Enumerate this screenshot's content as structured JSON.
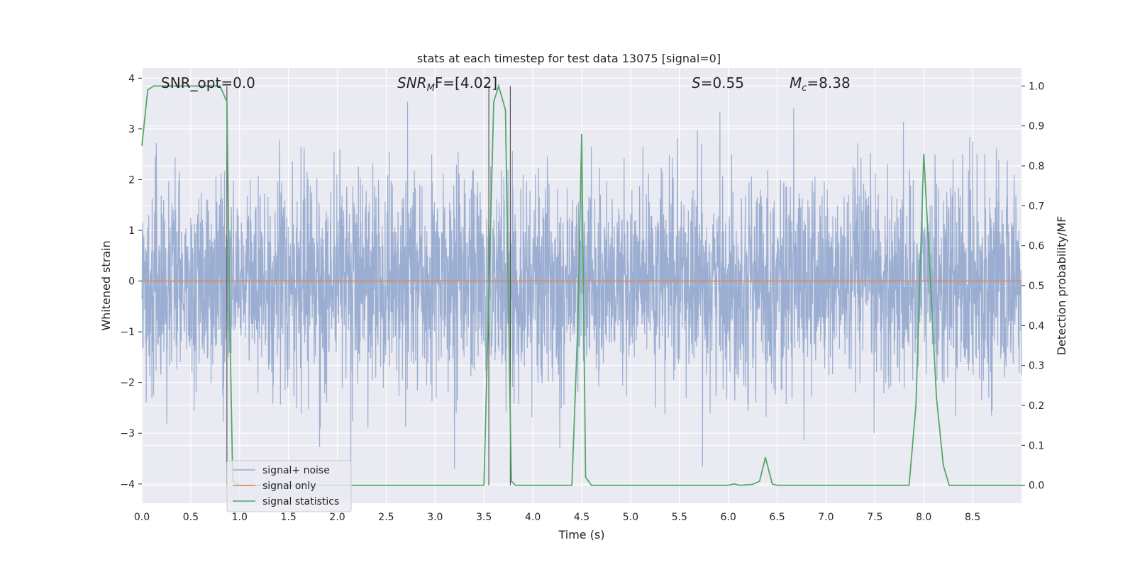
{
  "chart_data": {
    "type": "line",
    "title": "stats at each timestep for test data 13075 [signal=0]",
    "xlabel": "Time (s)",
    "ylabel_left": "Whitened strain",
    "ylabel_right": "Detection probability/MF",
    "xlim": [
      0.0,
      9.0
    ],
    "ylim_left": [
      -4.38,
      4.2
    ],
    "ylim_right": [
      -0.045,
      1.045
    ],
    "xticks": [
      "0.0",
      "0.5",
      "1.0",
      "1.5",
      "2.0",
      "2.5",
      "3.0",
      "3.5",
      "4.0",
      "4.5",
      "5.0",
      "5.5",
      "6.0",
      "6.5",
      "7.0",
      "7.5",
      "8.0",
      "8.5"
    ],
    "yticks_left": [
      "−4",
      "−3",
      "−2",
      "−1",
      "0",
      "1",
      "2",
      "3",
      "4"
    ],
    "yticks_right": [
      "0.0",
      "0.1",
      "0.2",
      "0.3",
      "0.4",
      "0.5",
      "0.6",
      "0.7",
      "0.8",
      "0.9",
      "1.0"
    ],
    "grid": true,
    "legend_placement": "lower-left",
    "annotations": {
      "snr_opt": "SNR_opt=0.0",
      "snr_mf_label": "SNR",
      "snr_mf_sub": "M",
      "snr_mf_value": "F=[4.02]",
      "s_label": "S",
      "s_value": "=0.55",
      "mc_label": "M",
      "mc_sub": "c",
      "mc_value": "=8.38"
    },
    "series": [
      {
        "name": "signal+ noise",
        "axis": "left",
        "color": "#4c72b0",
        "description_range": [
          -4.0,
          4.0
        ],
        "duration_s": 9.0
      },
      {
        "name": "signal only",
        "axis": "left",
        "color": "#dd8452",
        "x": [
          0.0,
          9.0
        ],
        "y": [
          0.0,
          0.0
        ]
      },
      {
        "name": "signal statistics",
        "axis": "right",
        "color": "#55a868",
        "x": [
          0.0,
          0.06,
          0.12,
          0.2,
          0.3,
          0.4,
          0.5,
          0.6,
          0.7,
          0.8,
          0.87,
          0.9,
          0.93,
          1.0,
          1.5,
          2.0,
          2.5,
          3.0,
          3.5,
          3.6,
          3.65,
          3.72,
          3.78,
          3.82,
          3.9,
          4.0,
          4.4,
          4.46,
          4.5,
          4.54,
          4.6,
          5.0,
          5.5,
          6.0,
          6.06,
          6.12,
          6.25,
          6.32,
          6.38,
          6.45,
          6.5,
          7.0,
          7.5,
          7.85,
          7.92,
          8.0,
          8.06,
          8.13,
          8.2,
          8.26,
          8.35,
          8.5,
          9.0
        ],
        "y": [
          0.85,
          0.99,
          1.0,
          1.0,
          1.0,
          1.0,
          1.0,
          1.0,
          1.0,
          1.0,
          0.96,
          0.4,
          0.01,
          0.0,
          0.0,
          0.0,
          0.0,
          0.0,
          0.0,
          0.96,
          1.0,
          0.94,
          0.01,
          0.0,
          0.0,
          0.0,
          0.0,
          0.4,
          0.88,
          0.02,
          0.0,
          0.0,
          0.0,
          0.0,
          0.003,
          0.0,
          0.002,
          0.01,
          0.07,
          0.003,
          0.0,
          0.0,
          0.0,
          0.0,
          0.2,
          0.83,
          0.55,
          0.22,
          0.05,
          0.0,
          0.0,
          0.0,
          0.0
        ]
      }
    ],
    "vlines": [
      0.87,
      3.55,
      3.77
    ]
  }
}
